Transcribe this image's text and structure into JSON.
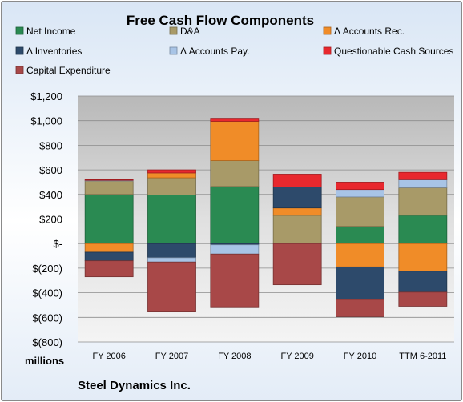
{
  "chart_data": {
    "type": "bar",
    "stacked": true,
    "title": "Free Cash Flow Components",
    "ylabel": "",
    "xlabel": "",
    "units_label": "millions",
    "footer": "Steel Dynamics Inc.",
    "ylim": [
      -800,
      1200
    ],
    "y_ticks": [
      1200,
      1000,
      800,
      600,
      400,
      200,
      0,
      -200,
      -400,
      -600,
      -800
    ],
    "y_tick_labels": [
      "$1,200",
      "$1,000",
      "$800",
      "$600",
      "$400",
      "$200",
      "$-",
      "$(200)",
      "$(400)",
      "$(600)",
      "$(800)"
    ],
    "categories": [
      "FY 2006",
      "FY 2007",
      "FY 2008",
      "FY 2009",
      "FY 2010",
      "TTM 6-2011"
    ],
    "grid": true,
    "legend_position": "top",
    "series": [
      {
        "name": "Net Income",
        "color": "#2a8a52",
        "values": [
          400,
          395,
          465,
          0,
          140,
          230
        ]
      },
      {
        "name": "D&A",
        "color": "#a89a68",
        "values": [
          110,
          140,
          210,
          230,
          240,
          225
        ]
      },
      {
        "name": "Δ Accounts Rec.",
        "color": "#f08c28",
        "values": [
          -70,
          40,
          320,
          60,
          -190,
          -225
        ]
      },
      {
        "name": "Δ Inventories",
        "color": "#2d4a6b",
        "values": [
          -70,
          -115,
          -10,
          170,
          -265,
          -170
        ]
      },
      {
        "name": "Δ Accounts Pay.",
        "color": "#a8c4e6",
        "values": [
          5,
          -35,
          -75,
          0,
          60,
          65
        ]
      },
      {
        "name": "Questionable Cash Sources",
        "color": "#e8282e",
        "values": [
          5,
          25,
          25,
          105,
          60,
          60
        ]
      },
      {
        "name": "Capital Expenditure",
        "color": "#a84848",
        "values": [
          -130,
          -400,
          -430,
          -335,
          -140,
          -115
        ]
      }
    ]
  }
}
